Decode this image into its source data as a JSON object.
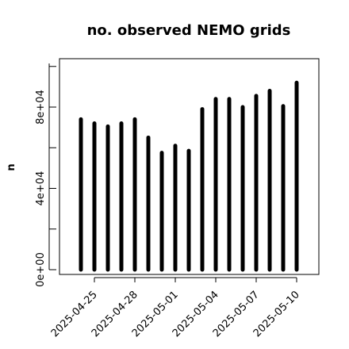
{
  "chart_data": {
    "type": "bar",
    "title": "no. observed NEMO grids",
    "xlabel": "",
    "ylabel": "n",
    "x": [
      "2025-04-24",
      "2025-04-25",
      "2025-04-26",
      "2025-04-27",
      "2025-04-28",
      "2025-04-29",
      "2025-04-30",
      "2025-05-01",
      "2025-05-02",
      "2025-05-03",
      "2025-05-04",
      "2025-05-05",
      "2025-05-06",
      "2025-05-07",
      "2025-05-08",
      "2025-05-09",
      "2025-05-10"
    ],
    "values": [
      74000,
      72000,
      70500,
      72000,
      74000,
      65000,
      57500,
      61000,
      58500,
      79000,
      84000,
      84000,
      80000,
      85500,
      88000,
      80500,
      92000
    ],
    "xticks": [
      "2025-04-25",
      "2025-04-28",
      "2025-05-01",
      "2025-05-04",
      "2025-05-07",
      "2025-05-10"
    ],
    "yticks": [
      0,
      40000,
      80000
    ],
    "ytick_labels": [
      "0e+00",
      "4e+04",
      "8e+04"
    ],
    "ylim": [
      -2000,
      100000
    ],
    "grid": false,
    "bar_color": "#000000"
  }
}
